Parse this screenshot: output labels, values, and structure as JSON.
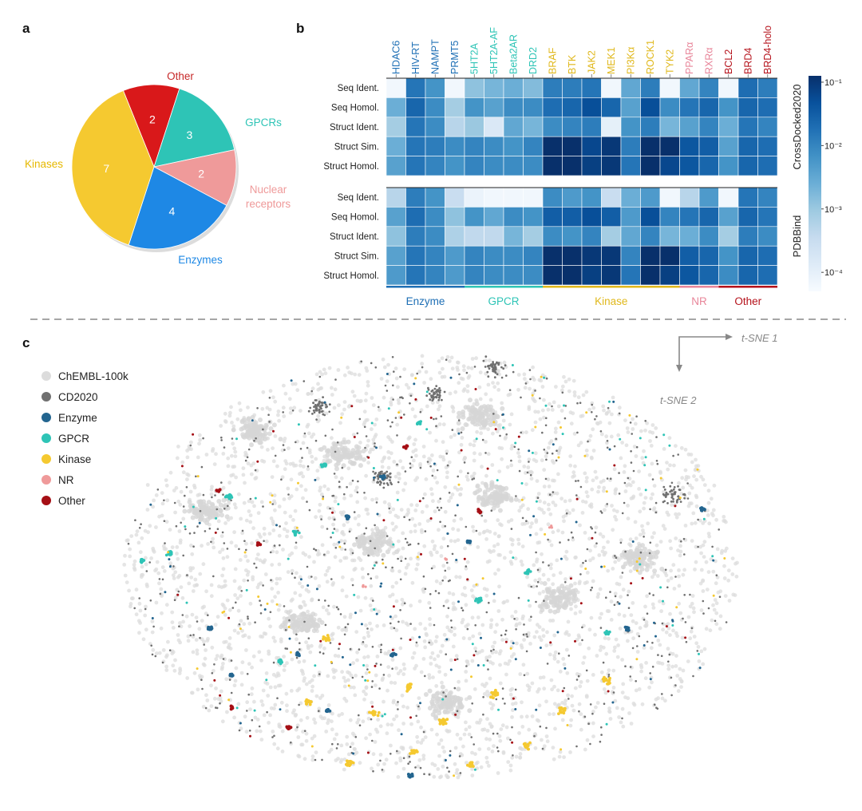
{
  "panels": {
    "a": "a",
    "b": "b",
    "c": "c"
  },
  "colors": {
    "kinase": "#f5c930",
    "other": "#d9181a",
    "gpcr": "#2ec4b6",
    "nr": "#ef9a9a",
    "enzyme": "#1e88e5",
    "enzyme_dark": "#23658f",
    "nr_pink": "#e8869a"
  },
  "chart_data": [
    {
      "type": "pie",
      "panel": "a",
      "slices": [
        {
          "label": "Other",
          "value": 2,
          "color": "#d9181a"
        },
        {
          "label": "GPCRs",
          "value": 3,
          "color": "#2ec4b6"
        },
        {
          "label": "Nuclear receptors",
          "value": 2,
          "color": "#ef9a9a"
        },
        {
          "label": "Enzymes",
          "value": 4,
          "color": "#1e88e5"
        },
        {
          "label": "Kinases",
          "value": 7,
          "color": "#f5c930"
        }
      ]
    },
    {
      "type": "heatmap",
      "panel": "b",
      "columns": [
        "HDAC6",
        "HIV-RT",
        "NAMPT",
        "PRMT5",
        "5HT2A",
        "5HT2A-AF",
        "Beta2AR",
        "DRD2",
        "BRAF",
        "BTK",
        "JAK2",
        "MEK1",
        "PI3Kα",
        "ROCK1",
        "TYK2",
        "PPARα",
        "RXRα",
        "BCL2",
        "BRD4",
        "BRD4-holo"
      ],
      "column_groups": [
        "Enzyme",
        "Enzyme",
        "Enzyme",
        "Enzyme",
        "GPCR",
        "GPCR",
        "GPCR",
        "GPCR",
        "Kinase",
        "Kinase",
        "Kinase",
        "Kinase",
        "Kinase",
        "Kinase",
        "Kinase",
        "NR",
        "NR",
        "Other",
        "Other",
        "Other"
      ],
      "group_labels": [
        {
          "name": "Enzyme",
          "color": "#1e6fb5"
        },
        {
          "name": "GPCR",
          "color": "#2ec4b6"
        },
        {
          "name": "Kinase",
          "color": "#e0b81c"
        },
        {
          "name": "NR",
          "color": "#e8869a"
        },
        {
          "name": "Other",
          "color": "#b5121b"
        }
      ],
      "rows": [
        "Seq Ident.",
        "Seq Homol.",
        "Struct Ident.",
        "Struct Sim.",
        "Struct Homol."
      ],
      "blocks": [
        {
          "name": "CrossDocked2020",
          "log10_values": [
            [
              -4.2,
              -1.8,
              -2.2,
              -4.2,
              -2.9,
              -2.7,
              -2.6,
              -2.8,
              -1.9,
              -1.9,
              -1.8,
              -4.2,
              -2.5,
              -1.9,
              -4.2,
              -2.5,
              -2.0,
              -4.2,
              -1.7,
              -1.9
            ],
            [
              -2.6,
              -1.6,
              -2.1,
              -3.1,
              -2.2,
              -2.4,
              -2.1,
              -2.1,
              -1.7,
              -1.6,
              -1.3,
              -1.6,
              -2.4,
              -1.3,
              -2.1,
              -1.8,
              -1.6,
              -2.2,
              -1.6,
              -1.7
            ],
            [
              -3.1,
              -1.8,
              -2.1,
              -3.3,
              -3.0,
              -3.8,
              -2.5,
              -2.7,
              -2.1,
              -2.0,
              -1.9,
              -4.0,
              -2.2,
              -1.9,
              -2.7,
              -2.4,
              -2.0,
              -2.6,
              -1.8,
              -2.0
            ],
            [
              -2.6,
              -1.8,
              -1.9,
              -2.1,
              -2.0,
              -2.1,
              -2.2,
              -2.0,
              -0.9,
              -0.9,
              -1.2,
              -1.0,
              -1.9,
              -0.9,
              -0.9,
              -1.4,
              -1.5,
              -2.4,
              -1.6,
              -1.7
            ],
            [
              -2.4,
              -1.8,
              -2.0,
              -2.2,
              -2.0,
              -2.1,
              -2.1,
              -2.1,
              -0.9,
              -0.9,
              -1.1,
              -1.0,
              -1.8,
              -0.9,
              -1.2,
              -1.4,
              -1.6,
              -2.2,
              -1.6,
              -1.7
            ]
          ]
        },
        {
          "name": "PDBBind",
          "log10_values": [
            [
              -3.3,
              -1.9,
              -2.2,
              -3.5,
              -4.1,
              -4.2,
              -4.2,
              -4.2,
              -2.1,
              -2.3,
              -2.2,
              -3.5,
              -2.6,
              -2.3,
              -4.2,
              -3.3,
              -2.3,
              -4.2,
              -1.8,
              -2.0
            ],
            [
              -2.4,
              -1.7,
              -2.1,
              -2.9,
              -2.2,
              -2.5,
              -2.1,
              -2.2,
              -1.5,
              -1.5,
              -1.3,
              -1.5,
              -2.3,
              -1.3,
              -2.0,
              -1.8,
              -1.6,
              -2.4,
              -1.6,
              -1.8
            ],
            [
              -2.9,
              -1.9,
              -2.1,
              -3.2,
              -3.4,
              -3.4,
              -2.7,
              -3.1,
              -2.1,
              -2.2,
              -2.0,
              -3.1,
              -2.5,
              -2.0,
              -2.7,
              -2.6,
              -2.1,
              -3.1,
              -1.9,
              -2.1
            ],
            [
              -2.4,
              -1.8,
              -2.0,
              -2.3,
              -2.0,
              -2.1,
              -2.1,
              -2.0,
              -0.9,
              -0.9,
              -1.0,
              -1.0,
              -2.0,
              -0.9,
              -0.9,
              -1.5,
              -1.6,
              -2.2,
              -1.6,
              -1.7
            ],
            [
              -2.3,
              -1.8,
              -2.0,
              -2.3,
              -2.0,
              -2.1,
              -2.1,
              -2.1,
              -0.9,
              -0.9,
              -1.1,
              -1.0,
              -1.8,
              -0.9,
              -1.1,
              -1.4,
              -1.6,
              -2.1,
              -1.6,
              -1.7
            ]
          ]
        }
      ],
      "colorbar": {
        "scale": "log",
        "ticks": [
          "10⁻¹",
          "10⁻²",
          "10⁻³",
          "10⁻⁴"
        ],
        "range": [
          -4.3,
          -0.9
        ]
      }
    },
    {
      "type": "scatter",
      "panel": "c",
      "axes": {
        "x_label": "t-SNE 1",
        "y_label": "t-SNE 2"
      },
      "legend": [
        {
          "label": "ChEMBL-100k",
          "color": "#dcdcdc"
        },
        {
          "label": "CD2020",
          "color": "#707070"
        },
        {
          "label": "Enzyme",
          "color": "#23658f"
        },
        {
          "label": "GPCR",
          "color": "#2ec4b6"
        },
        {
          "label": "Kinase",
          "color": "#f5c930"
        },
        {
          "label": "NR",
          "color": "#ef9a9a"
        },
        {
          "label": "Other",
          "color": "#a50f15"
        }
      ]
    }
  ]
}
